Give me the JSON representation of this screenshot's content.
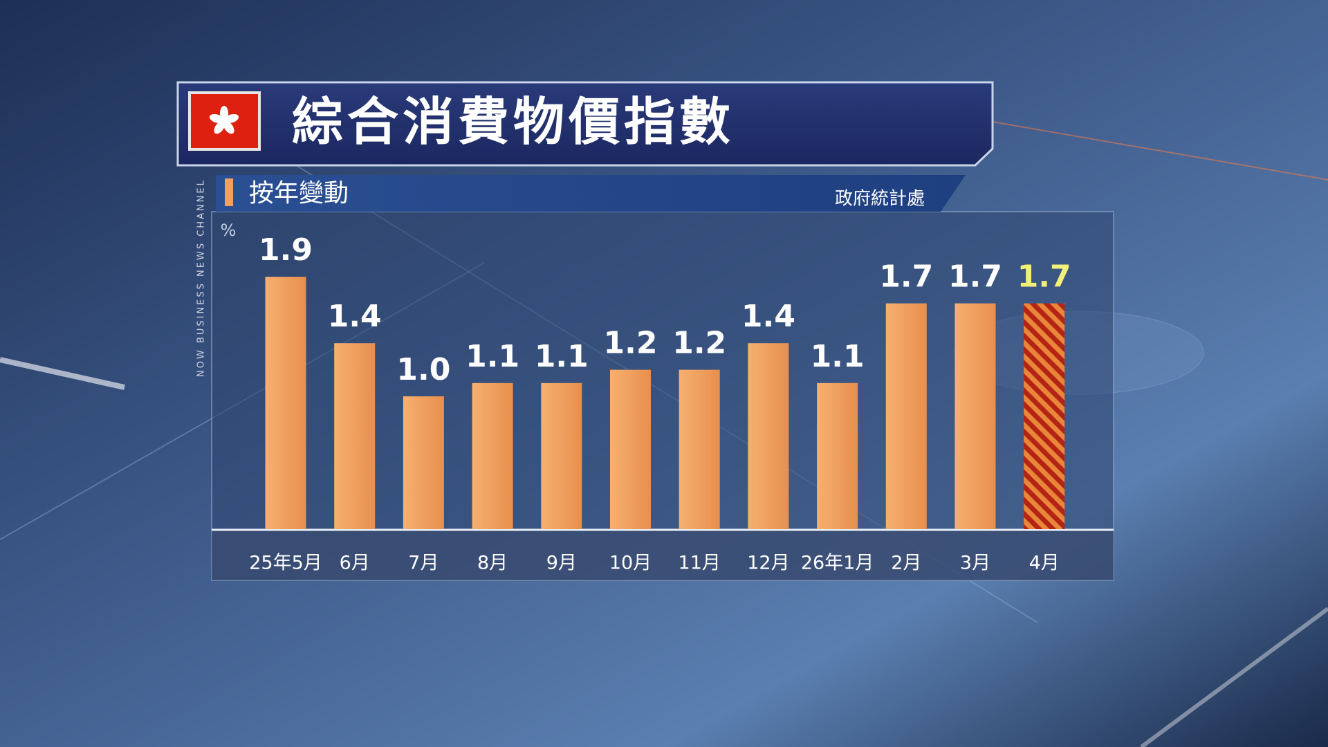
{
  "title": "綜合消費物價指數",
  "subtitle": "按年變動",
  "source": "政府統計處",
  "channel": "NOW BUSINESS NEWS CHANNEL",
  "chart_data": {
    "type": "bar",
    "unit": "%",
    "categories": [
      "25年5月",
      "6月",
      "7月",
      "8月",
      "9月",
      "10月",
      "11月",
      "12月",
      "26年1月",
      "2月",
      "3月",
      "4月"
    ],
    "values": [
      1.9,
      1.4,
      1.0,
      1.1,
      1.1,
      1.2,
      1.2,
      1.4,
      1.1,
      1.7,
      1.7,
      1.7
    ],
    "value_labels": [
      "1.9",
      "1.4",
      "1.0",
      "1.1",
      "1.1",
      "1.2",
      "1.2",
      "1.4",
      "1.1",
      "1.7",
      "1.7",
      "1.7"
    ],
    "color": "#f0a063"
  }
}
